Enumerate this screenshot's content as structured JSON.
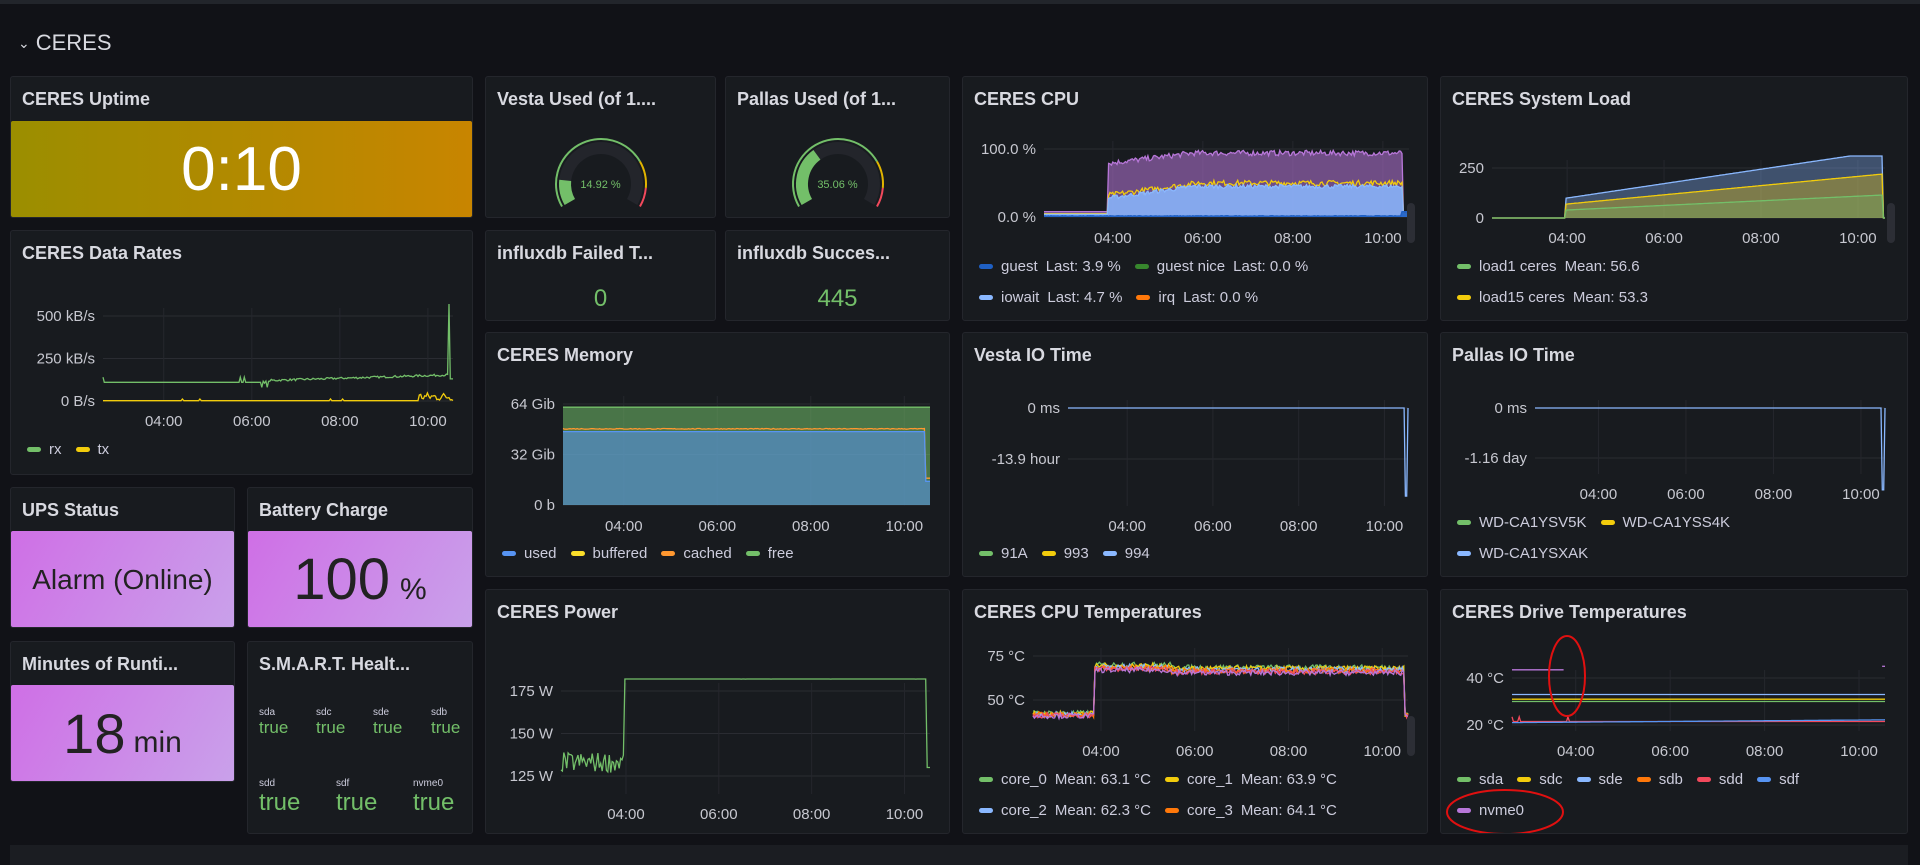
{
  "row": {
    "title": "CERES",
    "chevron": "chevron-down-icon"
  },
  "uptime": {
    "title": "CERES Uptime",
    "value": "0:10"
  },
  "vesta_used": {
    "title": "Vesta Used (of 1....",
    "value": "14.92 %",
    "percent": 14.92
  },
  "pallas_used": {
    "title": "Pallas Used (of 1...",
    "value": "35.06 %",
    "percent": 35.06
  },
  "influx_failed": {
    "title": "influxdb Failed T...",
    "value": "0"
  },
  "influx_success": {
    "title": "influxdb Succes...",
    "value": "445"
  },
  "ups": {
    "title": "UPS Status",
    "value": "Alarm (Online)"
  },
  "battery": {
    "title": "Battery Charge",
    "value": "100",
    "unit": "%"
  },
  "runtime": {
    "title": "Minutes of Runti...",
    "value": "18",
    "unit": "min"
  },
  "smart": {
    "title": "S.M.A.R.T. Healt...",
    "drives": [
      {
        "name": "sda",
        "value": "true"
      },
      {
        "name": "sdc",
        "value": "true"
      },
      {
        "name": "sde",
        "value": "true"
      },
      {
        "name": "sdb",
        "value": "true"
      },
      {
        "name": "sdd",
        "value": "true"
      },
      {
        "name": "sdf",
        "value": "true"
      },
      {
        "name": "nvme0",
        "value": "true"
      }
    ]
  },
  "x_ticks": [
    "04:00",
    "06:00",
    "08:00",
    "10:00"
  ],
  "charts": {
    "rates": {
      "title": "CERES Data Rates",
      "y_ticks": [
        {
          "label": "500 kB/s",
          "value": 500
        },
        {
          "label": "250 kB/s",
          "value": 250
        },
        {
          "label": "0 B/s",
          "value": 0
        }
      ],
      "legend": [
        {
          "name": "rx",
          "color": "#73bf69"
        },
        {
          "name": "tx",
          "color": "#f2cc0c"
        }
      ]
    },
    "cpu": {
      "title": "CERES CPU",
      "y_ticks": [
        {
          "label": "100.0 %",
          "value": 100
        },
        {
          "label": "0.0 %",
          "value": 0
        }
      ],
      "legend": [
        {
          "name": "guest",
          "stat": "Last: 3.9 %",
          "color": "#1f60c4"
        },
        {
          "name": "guest nice",
          "stat": "Last: 0.0 %",
          "color": "#37872d"
        },
        {
          "name": "iowait",
          "stat": "Last: 4.7 %",
          "color": "#8ab8ff"
        },
        {
          "name": "irq",
          "stat": "Last: 0.0 %",
          "color": "#ff780a"
        }
      ]
    },
    "load": {
      "title": "CERES System Load",
      "y_ticks": [
        {
          "label": "250",
          "value": 250
        },
        {
          "label": "0",
          "value": 0
        }
      ],
      "legend": [
        {
          "name": "load1 ceres",
          "stat": "Mean: 56.6",
          "color": "#73bf69"
        },
        {
          "name": "load15 ceres",
          "stat": "Mean: 53.3",
          "color": "#f2cc0c"
        }
      ]
    },
    "memory": {
      "title": "CERES Memory",
      "y_ticks": [
        {
          "label": "64 Gib",
          "value": 64
        },
        {
          "label": "32 Gib",
          "value": 32
        },
        {
          "label": "0 b",
          "value": 0
        }
      ],
      "legend": [
        {
          "name": "used",
          "color": "#5794f2"
        },
        {
          "name": "buffered",
          "color": "#fade2a"
        },
        {
          "name": "cached",
          "color": "#ff9830"
        },
        {
          "name": "free",
          "color": "#73bf69"
        }
      ]
    },
    "vesta_io": {
      "title": "Vesta IO Time",
      "y_ticks": [
        {
          "label": "0 ms",
          "value": 0
        },
        {
          "label": "-13.9 hour",
          "value": -13.9
        }
      ],
      "legend": [
        {
          "name": "91A",
          "color": "#73bf69"
        },
        {
          "name": "993",
          "color": "#f2cc0c"
        },
        {
          "name": "994",
          "color": "#8ab8ff"
        }
      ]
    },
    "pallas_io": {
      "title": "Pallas IO Time",
      "y_ticks": [
        {
          "label": "0 ms",
          "value": 0
        },
        {
          "label": "-1.16 day",
          "value": -1.16
        }
      ],
      "legend": [
        {
          "name": "WD-CA1YSV5K",
          "color": "#73bf69"
        },
        {
          "name": "WD-CA1YSS4K",
          "color": "#f2cc0c"
        },
        {
          "name": "WD-CA1YSXAK",
          "color": "#8ab8ff"
        }
      ]
    },
    "power": {
      "title": "CERES Power",
      "y_ticks": [
        {
          "label": "175 W",
          "value": 175
        },
        {
          "label": "150 W",
          "value": 150
        },
        {
          "label": "125 W",
          "value": 125
        }
      ],
      "legend": []
    },
    "cpu_temp": {
      "title": "CERES CPU Temperatures",
      "y_ticks": [
        {
          "label": "75 °C",
          "value": 75
        },
        {
          "label": "50 °C",
          "value": 50
        }
      ],
      "legend": [
        {
          "name": "core_0",
          "stat": "Mean: 63.1 °C",
          "color": "#73bf69"
        },
        {
          "name": "core_1",
          "stat": "Mean: 63.9 °C",
          "color": "#f2cc0c"
        },
        {
          "name": "core_2",
          "stat": "Mean: 62.3 °C",
          "color": "#8ab8ff"
        },
        {
          "name": "core_3",
          "stat": "Mean: 64.1 °C",
          "color": "#ff780a"
        }
      ]
    },
    "drive_temp": {
      "title": "CERES Drive Temperatures",
      "y_ticks": [
        {
          "label": "40 °C",
          "value": 40
        },
        {
          "label": "20 °C",
          "value": 20
        }
      ],
      "legend": [
        {
          "name": "sda",
          "color": "#73bf69"
        },
        {
          "name": "sdc",
          "color": "#f2cc0c"
        },
        {
          "name": "sde",
          "color": "#8ab8ff"
        },
        {
          "name": "sdb",
          "color": "#ff780a"
        },
        {
          "name": "sdd",
          "color": "#f2495c"
        },
        {
          "name": "sdf",
          "color": "#5794f2"
        },
        {
          "name": "nvme0",
          "color": "#b877d9"
        }
      ]
    }
  },
  "annotation_color": "#e01010"
}
